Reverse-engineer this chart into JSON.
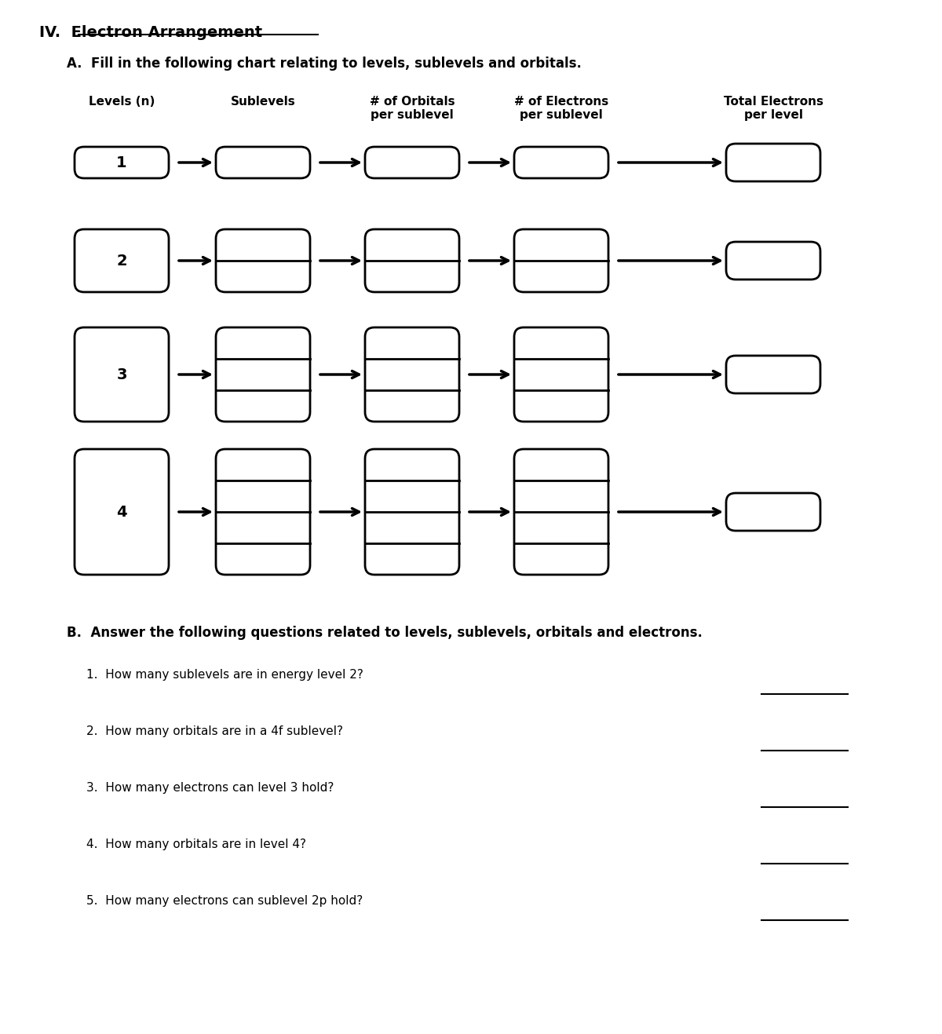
{
  "title": "IV.  Electron Arrangement",
  "section_a_title": "A.  Fill in the following chart relating to levels, sublevels and orbitals.",
  "section_b_title": "B.  Answer the following questions related to levels, sublevels, orbitals and electrons.",
  "col_headers": [
    "Levels (n)",
    "Sublevels",
    "# of Orbitals\nper sublevel",
    "# of Electrons\nper sublevel",
    "Total Electrons\nper level"
  ],
  "levels": [
    1,
    2,
    3,
    4
  ],
  "questions": [
    "1.  How many sublevels are in energy level 2?",
    "2.  How many orbitals are in a 4f sublevel?",
    "3.  How many electrons can level 3 hold?",
    "4.  How many orbitals are in level 4?",
    "5.  How many electrons can sublevel 2p hold?"
  ],
  "bg_color": "#ffffff",
  "box_color": "#000000",
  "text_color": "#000000",
  "font_size": 11,
  "header_font_size": 11,
  "title_font_size": 14,
  "section_font_size": 12
}
